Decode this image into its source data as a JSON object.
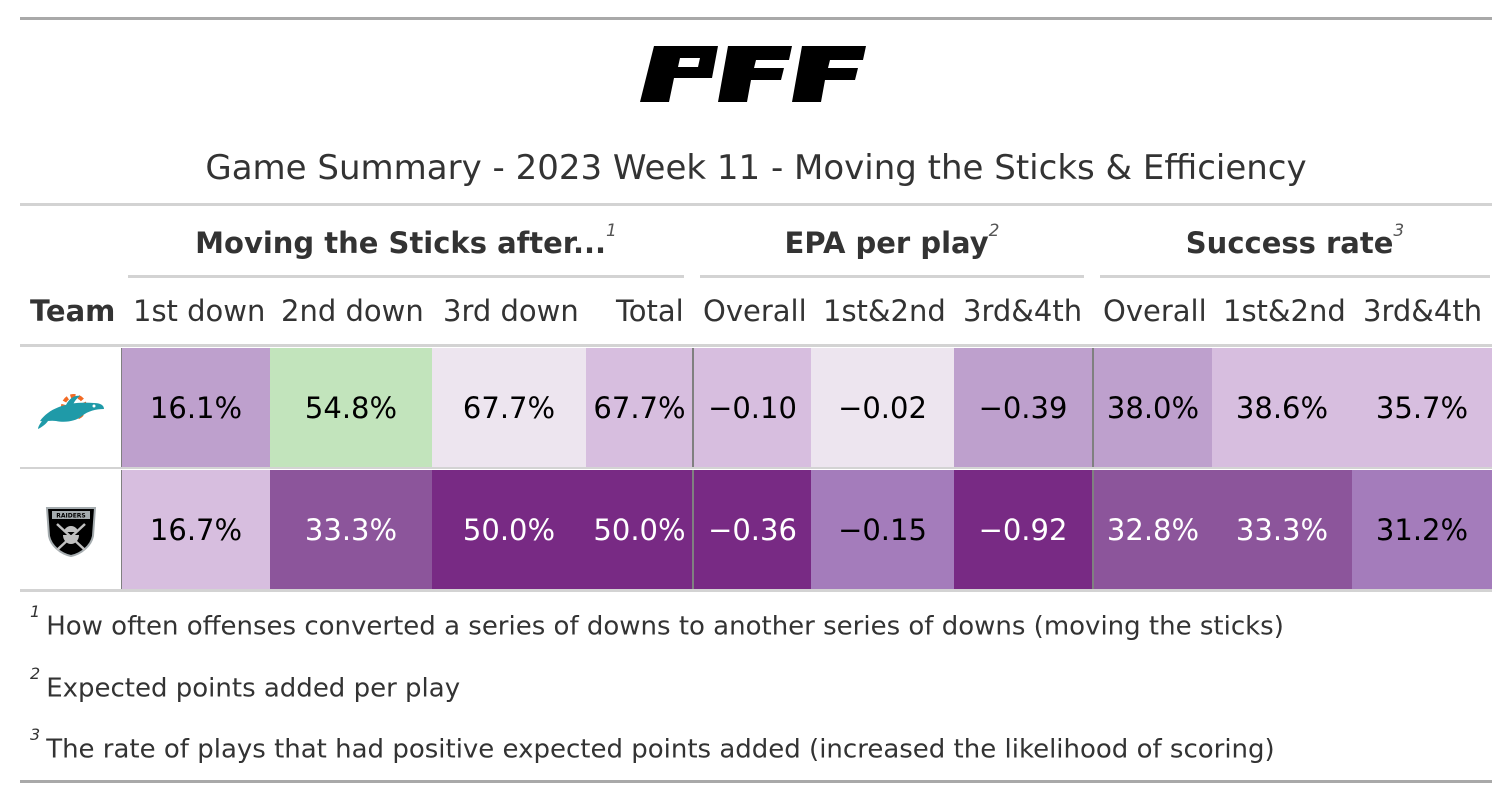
{
  "brand": {
    "logo_text": "PFF"
  },
  "title": "Game Summary - 2023 Week 11 - Moving the Sticks & Efficiency",
  "spanners": [
    {
      "label": "Moving the Sticks after...",
      "note": "1"
    },
    {
      "label": "EPA per play",
      "note": "2"
    },
    {
      "label": "Success rate",
      "note": "3"
    }
  ],
  "columns": [
    "Team",
    "1st down",
    "2nd down",
    "3rd down",
    "Total",
    "Overall",
    "1st&2nd",
    "3rd&4th",
    "Overall",
    "1st&2nd",
    "3rd&4th"
  ],
  "rows": [
    {
      "team_logo": "dolphins-logo",
      "values": [
        "16.1%",
        "54.8%",
        "67.7%",
        "67.7%",
        "−0.10",
        "−0.02",
        "−0.39",
        "38.0%",
        "38.6%",
        "35.7%"
      ],
      "colors": [
        "#bea0cd",
        "#c2e4bc",
        "#ede5ef",
        "#d7bedf",
        "#d7bedf",
        "#ede5ef",
        "#bea0cd",
        "#bea0cd",
        "#d7bedf",
        "#d7bedf"
      ]
    },
    {
      "team_logo": "raiders-logo",
      "values": [
        "16.7%",
        "33.3%",
        "50.0%",
        "50.0%",
        "−0.36",
        "−0.15",
        "−0.92",
        "32.8%",
        "33.3%",
        "31.2%"
      ],
      "colors": [
        "#d7bedf",
        "#8c559b",
        "#782a84",
        "#782a84",
        "#782a84",
        "#a47cbb",
        "#782a84",
        "#8c559b",
        "#8c559b",
        "#a47cbb"
      ]
    }
  ],
  "footnotes": [
    {
      "mark": "1",
      "text": "How often offenses converted a series of downs to another series of downs (moving the sticks)"
    },
    {
      "mark": "2",
      "text": "Expected points added per play"
    },
    {
      "mark": "3",
      "text": "The rate of plays that had positive expected points added (increased the likelihood of scoring)"
    }
  ]
}
